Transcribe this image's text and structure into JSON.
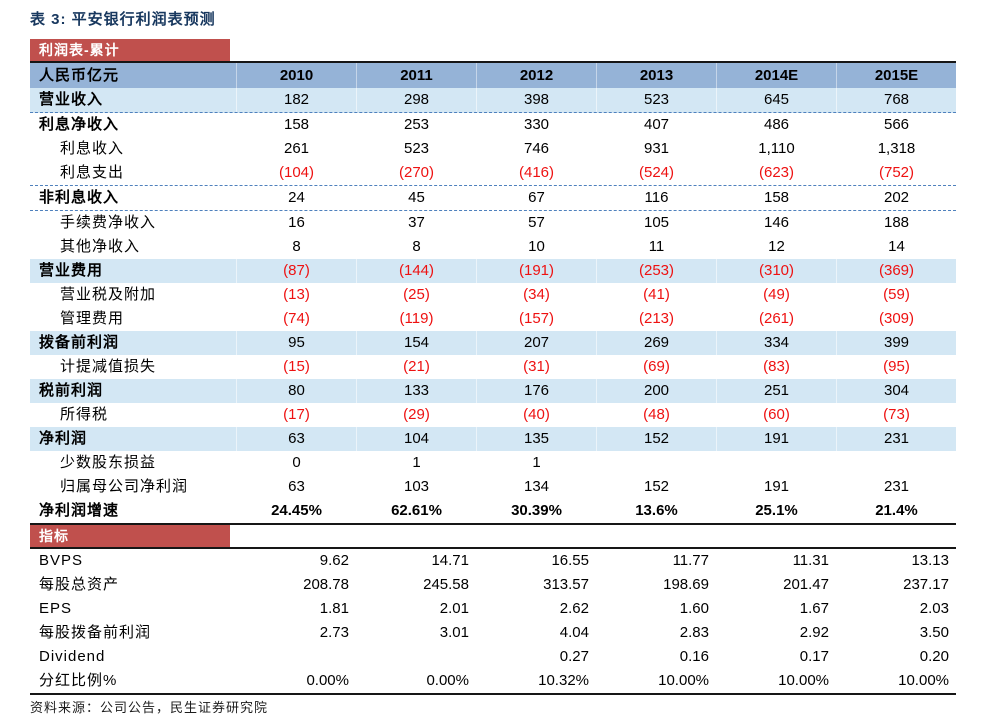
{
  "title": "表 3: 平安银行利润表预测",
  "colors": {
    "title_blue": "#17375E",
    "band_red": "#C0504D",
    "header_blue": "#95B3D7",
    "highlight_blue": "#D3E7F4",
    "dashed_line_blue": "#4F81BD",
    "negative_red": "#EE1111"
  },
  "income_table": {
    "band_label": "利润表-累计",
    "unit_label": "人民币亿元",
    "years": [
      "2010",
      "2011",
      "2012",
      "2013",
      "2014E",
      "2015E"
    ],
    "rows": [
      {
        "label": "营业收入",
        "bold": true,
        "indent": false,
        "highlight": true,
        "dashed": true,
        "bold_values": false,
        "values": [
          "182",
          "298",
          "398",
          "523",
          "645",
          "768"
        ]
      },
      {
        "label": "利息净收入",
        "bold": true,
        "indent": false,
        "highlight": false,
        "dashed": false,
        "bold_values": false,
        "values": [
          "158",
          "253",
          "330",
          "407",
          "486",
          "566"
        ]
      },
      {
        "label": "利息收入",
        "bold": false,
        "indent": true,
        "highlight": false,
        "dashed": false,
        "bold_values": false,
        "values": [
          "261",
          "523",
          "746",
          "931",
          "1,110",
          "1,318"
        ]
      },
      {
        "label": "利息支出",
        "bold": false,
        "indent": true,
        "highlight": false,
        "dashed": true,
        "bold_values": false,
        "values": [
          "(104)",
          "(270)",
          "(416)",
          "(524)",
          "(623)",
          "(752)"
        ]
      },
      {
        "label": "非利息收入",
        "bold": true,
        "indent": false,
        "highlight": false,
        "dashed": true,
        "bold_values": false,
        "values": [
          "24",
          "45",
          "67",
          "116",
          "158",
          "202"
        ]
      },
      {
        "label": "手续费净收入",
        "bold": false,
        "indent": true,
        "highlight": false,
        "dashed": false,
        "bold_values": false,
        "values": [
          "16",
          "37",
          "57",
          "105",
          "146",
          "188"
        ]
      },
      {
        "label": "其他净收入",
        "bold": false,
        "indent": true,
        "highlight": false,
        "dashed": false,
        "bold_values": false,
        "values": [
          "8",
          "8",
          "10",
          "11",
          "12",
          "14"
        ]
      },
      {
        "label": "营业费用",
        "bold": true,
        "indent": false,
        "highlight": true,
        "dashed": false,
        "bold_values": false,
        "values": [
          "(87)",
          "(144)",
          "(191)",
          "(253)",
          "(310)",
          "(369)"
        ]
      },
      {
        "label": "营业税及附加",
        "bold": false,
        "indent": true,
        "highlight": false,
        "dashed": false,
        "bold_values": false,
        "values": [
          "(13)",
          "(25)",
          "(34)",
          "(41)",
          "(49)",
          "(59)"
        ]
      },
      {
        "label": "管理费用",
        "bold": false,
        "indent": true,
        "highlight": false,
        "dashed": false,
        "bold_values": false,
        "values": [
          "(74)",
          "(119)",
          "(157)",
          "(213)",
          "(261)",
          "(309)"
        ]
      },
      {
        "label": "拨备前利润",
        "bold": true,
        "indent": false,
        "highlight": true,
        "dashed": false,
        "bold_values": false,
        "values": [
          "95",
          "154",
          "207",
          "269",
          "334",
          "399"
        ]
      },
      {
        "label": "计提减值损失",
        "bold": false,
        "indent": true,
        "highlight": false,
        "dashed": false,
        "bold_values": false,
        "values": [
          "(15)",
          "(21)",
          "(31)",
          "(69)",
          "(83)",
          "(95)"
        ]
      },
      {
        "label": "税前利润",
        "bold": true,
        "indent": false,
        "highlight": true,
        "dashed": false,
        "bold_values": false,
        "values": [
          "80",
          "133",
          "176",
          "200",
          "251",
          "304"
        ]
      },
      {
        "label": "所得税",
        "bold": false,
        "indent": true,
        "highlight": false,
        "dashed": false,
        "bold_values": false,
        "values": [
          "(17)",
          "(29)",
          "(40)",
          "(48)",
          "(60)",
          "(73)"
        ]
      },
      {
        "label": "净利润",
        "bold": true,
        "indent": false,
        "highlight": true,
        "dashed": false,
        "bold_values": false,
        "values": [
          "63",
          "104",
          "135",
          "152",
          "191",
          "231"
        ]
      },
      {
        "label": "少数股东损益",
        "bold": false,
        "indent": true,
        "highlight": false,
        "dashed": false,
        "bold_values": false,
        "values": [
          "0",
          "1",
          "1",
          "",
          "",
          ""
        ]
      },
      {
        "label": "归属母公司净利润",
        "bold": false,
        "indent": true,
        "highlight": false,
        "dashed": false,
        "bold_values": false,
        "values": [
          "63",
          "103",
          "134",
          "152",
          "191",
          "231"
        ]
      },
      {
        "label": "净利润增速",
        "bold": true,
        "indent": false,
        "highlight": false,
        "dashed": false,
        "bold_values": true,
        "values": [
          "24.45%",
          "62.61%",
          "30.39%",
          "13.6%",
          "25.1%",
          "21.4%"
        ]
      }
    ]
  },
  "metrics_table": {
    "band_label": "指标",
    "rows": [
      {
        "label": "BVPS",
        "values": [
          "9.62",
          "14.71",
          "16.55",
          "11.77",
          "11.31",
          "13.13"
        ]
      },
      {
        "label": "每股总资产",
        "values": [
          "208.78",
          "245.58",
          "313.57",
          "198.69",
          "201.47",
          "237.17"
        ]
      },
      {
        "label": "EPS",
        "values": [
          "1.81",
          "2.01",
          "2.62",
          "1.60",
          "1.67",
          "2.03"
        ]
      },
      {
        "label": "每股拨备前利润",
        "values": [
          "2.73",
          "3.01",
          "4.04",
          "2.83",
          "2.92",
          "3.50"
        ]
      },
      {
        "label": "Dividend",
        "values": [
          "",
          "",
          "0.27",
          "0.16",
          "0.17",
          "0.20"
        ]
      },
      {
        "label": "分红比例%",
        "values": [
          "0.00%",
          "0.00%",
          "10.32%",
          "10.00%",
          "10.00%",
          "10.00%"
        ]
      }
    ]
  },
  "footer": {
    "source": "资料来源：公司公告，民生证券研究院"
  }
}
